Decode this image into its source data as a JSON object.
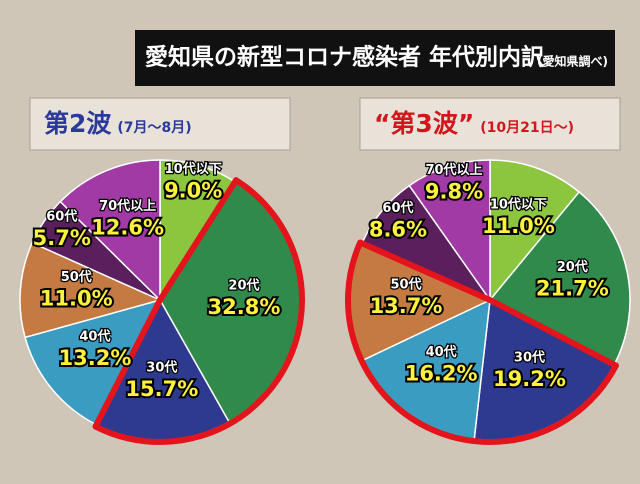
{
  "header": {
    "title": "愛知県の新型コロナ感染者 年代別内訳",
    "source": "(愛知県調べ)"
  },
  "chart_data": [
    {
      "type": "pie",
      "title": "第2波",
      "subtitle": "(7月〜8月)",
      "title_color": "#2b3a9a",
      "categories": [
        "10代以下",
        "20代",
        "30代",
        "40代",
        "50代",
        "60代",
        "70代以上"
      ],
      "values": [
        9.0,
        32.8,
        15.7,
        13.2,
        11.0,
        5.7,
        12.6
      ],
      "value_labels": [
        "9.0%",
        "32.8%",
        "15.7%",
        "13.2%",
        "11.0%",
        "5.7%",
        "12.6%"
      ],
      "colors": [
        "#8cc63f",
        "#2f8a4c",
        "#2e3a8f",
        "#3a9cc0",
        "#c57a42",
        "#5a1f5c",
        "#a23aa6"
      ],
      "highlight": [
        1,
        2
      ],
      "highlight_color": "#e3141b"
    },
    {
      "type": "pie",
      "title": "“第3波”",
      "subtitle": "(10月21日〜)",
      "title_color": "#d3151c",
      "categories": [
        "10代以下",
        "20代",
        "30代",
        "40代",
        "50代",
        "60代",
        "70代以上"
      ],
      "values": [
        11.0,
        21.7,
        19.2,
        16.2,
        13.7,
        8.6,
        9.8
      ],
      "value_labels": [
        "11.0%",
        "21.7%",
        "19.2%",
        "16.2%",
        "13.7%",
        "8.6%",
        "9.8%"
      ],
      "colors": [
        "#8cc63f",
        "#2f8a4c",
        "#2e3a8f",
        "#3a9cc0",
        "#c57a42",
        "#5a1f5c",
        "#a23aa6"
      ],
      "highlight": [
        2,
        3,
        4
      ],
      "highlight_color": "#e3141b"
    }
  ]
}
